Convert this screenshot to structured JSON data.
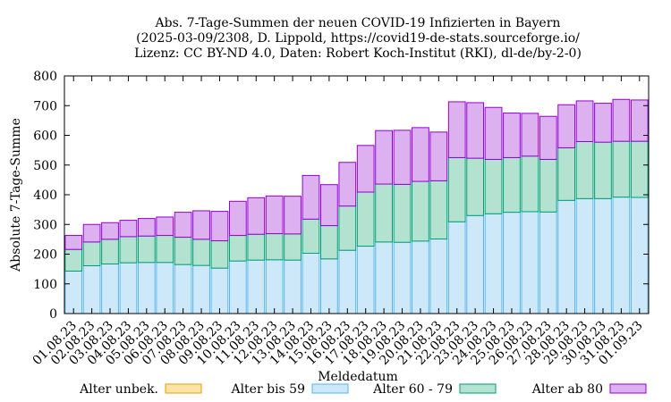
{
  "chart_data": {
    "type": "bar",
    "stacked": true,
    "title_lines": [
      "Abs. 7-Tage-Summen der neuen COVID-19 Infizierten in Bayern",
      "(2025-03-09/2308, D. Lippold, https://covid19-de-stats.sourceforge.io/",
      "Lizenz: CC BY-ND 4.0, Daten: Robert Koch-Institut (RKI), dl-de/by-2-0)"
    ],
    "xlabel": "Meldedatum",
    "ylabel": "Absolute 7-Tage-Summe",
    "ylim": [
      0,
      800
    ],
    "yticks": [
      0,
      100,
      200,
      300,
      400,
      500,
      600,
      700,
      800
    ],
    "grid": false,
    "legend_position": "bottom",
    "categories": [
      "01.08.23",
      "02.08.23",
      "03.08.23",
      "04.08.23",
      "05.08.23",
      "06.08.23",
      "07.08.23",
      "08.08.23",
      "09.08.23",
      "10.08.23",
      "11.08.23",
      "12.08.23",
      "13.08.23",
      "14.08.23",
      "15.08.23",
      "16.08.23",
      "17.08.23",
      "18.08.23",
      "19.08.23",
      "20.08.23",
      "21.08.23",
      "22.08.23",
      "23.08.23",
      "24.08.23",
      "25.08.23",
      "26.08.23",
      "27.08.23",
      "28.08.23",
      "29.08.23",
      "30.08.23",
      "31.08.23",
      "01.09.23"
    ],
    "series": [
      {
        "name": "Alter unbek.",
        "fill": "#fde3a7",
        "stroke": "#e69f00",
        "values": [
          0,
          0,
          0,
          0,
          0,
          0,
          0,
          0,
          0,
          0,
          0,
          0,
          0,
          0,
          0,
          0,
          0,
          0,
          0,
          0,
          0,
          0,
          0,
          0,
          0,
          0,
          0,
          0,
          0,
          0,
          0,
          0
        ]
      },
      {
        "name": "Alter bis 59",
        "fill": "#cde8f8",
        "stroke": "#56b4e9",
        "values": [
          143,
          161,
          167,
          171,
          172,
          172,
          165,
          162,
          153,
          177,
          180,
          181,
          180,
          203,
          184,
          213,
          227,
          241,
          240,
          244,
          251,
          309,
          330,
          336,
          341,
          343,
          342,
          381,
          387,
          387,
          392,
          391
        ]
      },
      {
        "name": "Alter 60 - 79",
        "fill": "#b3e2d0",
        "stroke": "#009e73",
        "values": [
          73,
          80,
          83,
          88,
          89,
          91,
          92,
          88,
          92,
          86,
          87,
          88,
          88,
          115,
          112,
          149,
          182,
          195,
          195,
          201,
          196,
          216,
          193,
          183,
          184,
          187,
          177,
          177,
          192,
          190,
          188,
          189
        ]
      },
      {
        "name": "Alter ab 80",
        "fill": "#ddb0f0",
        "stroke": "#9400d3",
        "values": [
          47,
          59,
          56,
          55,
          59,
          62,
          84,
          96,
          99,
          115,
          123,
          127,
          127,
          147,
          138,
          147,
          157,
          180,
          182,
          181,
          164,
          188,
          187,
          175,
          150,
          144,
          145,
          145,
          137,
          131,
          141,
          139
        ]
      }
    ]
  }
}
